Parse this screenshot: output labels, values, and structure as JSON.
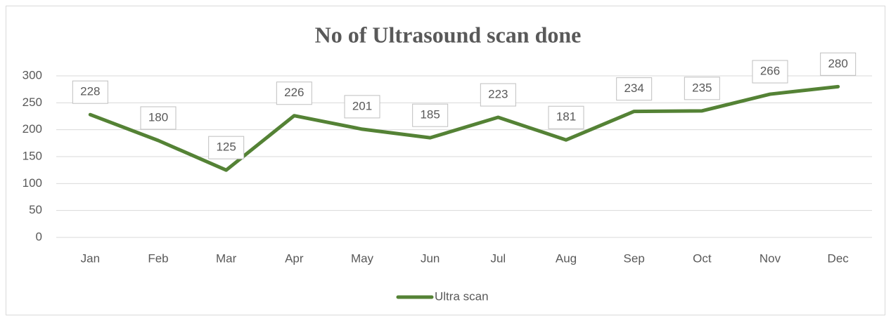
{
  "chart_data": {
    "type": "line",
    "title": "No of Ultrasound scan done",
    "categories": [
      "Jan",
      "Feb",
      "Mar",
      "Apr",
      "May",
      "Jun",
      "Jul",
      "Aug",
      "Sep",
      "Oct",
      "Nov",
      "Dec"
    ],
    "series": [
      {
        "name": "Ultra scan",
        "color": "#548235",
        "values": [
          228,
          180,
          125,
          226,
          201,
          185,
          223,
          181,
          234,
          235,
          266,
          280
        ]
      }
    ],
    "ylim": [
      0,
      300
    ],
    "yticks": [
      0,
      50,
      100,
      150,
      200,
      250,
      300
    ],
    "grid": true,
    "legend": "bottom",
    "data_labels": true
  }
}
